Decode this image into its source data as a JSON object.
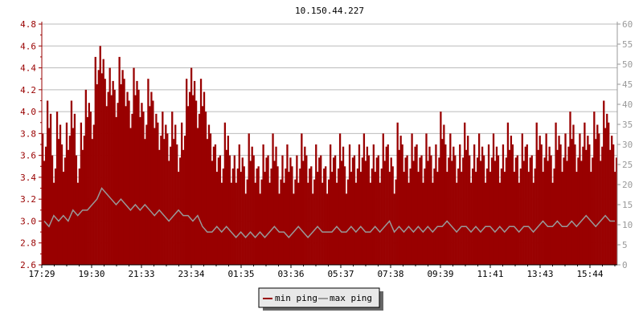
{
  "chart_data": {
    "type": "bar",
    "title": "10.150.44.227",
    "x_tick_labels": [
      "17:29",
      "19:30",
      "21:33",
      "23:34",
      "01:35",
      "03:36",
      "05:37",
      "07:38",
      "09:39",
      "11:41",
      "13:43",
      "15:44"
    ],
    "left_axis": {
      "ylim": [
        2.6,
        4.8
      ],
      "ticks": [
        "2.6",
        "2.8",
        "3.0",
        "3.2",
        "3.4",
        "3.6",
        "3.8",
        "4.0",
        "4.2",
        "4.4",
        "4.6",
        "4.8"
      ]
    },
    "right_axis": {
      "ylim": [
        0,
        60
      ],
      "ticks": [
        "0",
        "5",
        "10",
        "15",
        "20",
        "25",
        "30",
        "35",
        "40",
        "45",
        "50",
        "55",
        "60"
      ]
    },
    "grid": true,
    "legend_placement": "bottom-center",
    "series": [
      {
        "name": "min ping",
        "color": "#990000",
        "values": [
          3.8,
          4.1,
          3.6,
          4.0,
          3.7,
          3.9,
          4.1,
          3.6,
          3.9,
          4.2,
          4.0,
          4.5,
          4.6,
          4.3,
          4.4,
          4.2,
          4.5,
          4.3,
          4.1,
          4.4,
          4.2,
          4.0,
          4.3,
          4.1,
          3.9,
          4.0,
          3.8,
          4.0,
          3.7,
          3.9,
          4.3,
          4.4,
          4.1,
          4.3,
          4.0,
          3.8,
          3.7,
          3.6,
          3.9,
          3.6,
          3.6,
          3.7,
          3.5,
          3.8,
          3.6,
          3.5,
          3.7,
          3.6,
          3.8,
          3.5,
          3.6,
          3.7,
          3.5,
          3.6,
          3.8,
          3.6,
          3.5,
          3.7,
          3.6,
          3.5,
          3.7,
          3.6,
          3.8,
          3.5,
          3.7,
          3.6,
          3.7,
          3.8,
          3.6,
          3.7,
          3.6,
          3.8,
          3.7,
          3.5,
          3.9,
          3.7,
          3.6,
          3.8,
          3.7,
          3.6,
          3.8,
          3.6,
          3.7,
          4.0,
          3.7,
          3.8,
          3.6,
          3.7,
          3.9,
          3.6,
          3.7,
          3.8,
          3.6,
          3.7,
          3.8,
          3.6,
          3.7,
          3.9,
          3.7,
          3.6,
          3.8,
          3.7,
          3.6,
          3.9,
          3.7,
          3.8,
          3.6,
          3.9,
          3.7,
          3.8,
          4.0,
          3.7,
          3.8,
          3.9,
          3.7,
          4.0,
          3.8,
          4.1,
          3.9,
          3.7
        ]
      },
      {
        "name": "max ping",
        "color": "#999999",
        "values": [
          3.0,
          2.95,
          3.05,
          3.0,
          3.05,
          3.0,
          3.1,
          3.05,
          3.1,
          3.1,
          3.15,
          3.2,
          3.3,
          3.25,
          3.2,
          3.15,
          3.2,
          3.15,
          3.1,
          3.15,
          3.1,
          3.15,
          3.1,
          3.05,
          3.1,
          3.05,
          3.0,
          3.05,
          3.1,
          3.05,
          3.05,
          3.0,
          3.05,
          2.95,
          2.9,
          2.9,
          2.95,
          2.9,
          2.95,
          2.9,
          2.85,
          2.9,
          2.85,
          2.9,
          2.85,
          2.9,
          2.85,
          2.9,
          2.95,
          2.9,
          2.9,
          2.85,
          2.9,
          2.95,
          2.9,
          2.85,
          2.9,
          2.95,
          2.9,
          2.9,
          2.9,
          2.95,
          2.9,
          2.9,
          2.95,
          2.9,
          2.95,
          2.9,
          2.9,
          2.95,
          2.9,
          2.95,
          3.0,
          2.9,
          2.95,
          2.9,
          2.95,
          2.9,
          2.95,
          2.9,
          2.95,
          2.9,
          2.95,
          2.95,
          3.0,
          2.95,
          2.9,
          2.95,
          2.95,
          2.9,
          2.95,
          2.9,
          2.95,
          2.95,
          2.9,
          2.95,
          2.9,
          2.95,
          2.95,
          2.9,
          2.95,
          2.95,
          2.9,
          2.95,
          3.0,
          2.95,
          2.95,
          3.0,
          2.95,
          2.95,
          3.0,
          2.95,
          3.0,
          3.05,
          3.0,
          2.95,
          3.0,
          3.05,
          3.0,
          3.0
        ]
      }
    ]
  }
}
